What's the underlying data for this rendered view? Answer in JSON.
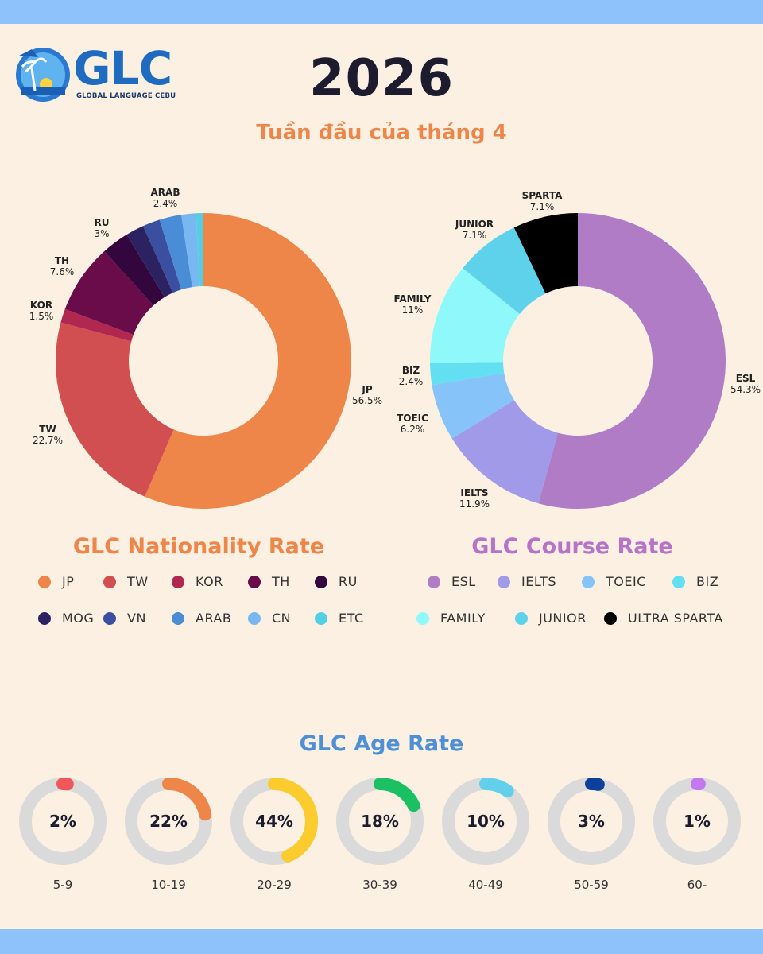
{
  "brand": {
    "name": "GLC",
    "tagline": "GLOBAL LANGUAGE CEBU"
  },
  "header": {
    "year": "2026",
    "subtitle": "Tuần đầu của tháng 4"
  },
  "colors": {
    "accent_orange": "#EE8649",
    "nationality_title": "#EE8649",
    "course_title": "#B774C6",
    "age_title": "#4E8FD6",
    "track": "#DADADA"
  },
  "chart_data": [
    {
      "type": "pie",
      "donut": true,
      "title": "GLC Nationality Rate",
      "slices": [
        {
          "label": "JP",
          "value": 56.5,
          "display": "56.5%",
          "color": "#EE8649"
        },
        {
          "label": "TW",
          "value": 22.7,
          "display": "22.7%",
          "color": "#D14F50"
        },
        {
          "label": "KOR",
          "value": 1.5,
          "display": "1.5%",
          "color": "#B0274F"
        },
        {
          "label": "TH",
          "value": 7.6,
          "display": "7.6%",
          "color": "#6A0C4A"
        },
        {
          "label": "RU",
          "value": 3,
          "display": "3%",
          "color": "#33063E"
        },
        {
          "label": "MOG",
          "value": 2.0,
          "display": "",
          "color": "#2C2262"
        },
        {
          "label": "VN",
          "value": 1.9,
          "display": "",
          "color": "#3A4FA0"
        },
        {
          "label": "ARAB",
          "value": 2.4,
          "display": "2.4%",
          "color": "#4A8CD6"
        },
        {
          "label": "CN",
          "value": 1.6,
          "display": "",
          "color": "#78B7F0"
        },
        {
          "label": "ETC",
          "value": 0.8,
          "display": "",
          "color": "#53CFE4"
        }
      ],
      "legend": [
        "JP",
        "TW",
        "KOR",
        "TH",
        "RU",
        "MOG",
        "VN",
        "ARAB",
        "CN",
        "ETC"
      ]
    },
    {
      "type": "pie",
      "donut": true,
      "title": "GLC Course Rate",
      "slices": [
        {
          "label": "ESL",
          "value": 54.3,
          "display": "54.3%",
          "color": "#B07CC6"
        },
        {
          "label": "IELTS",
          "value": 11.9,
          "display": "11.9%",
          "color": "#A19AE8"
        },
        {
          "label": "TOEIC",
          "value": 6.2,
          "display": "6.2%",
          "color": "#86C3F8"
        },
        {
          "label": "BIZ",
          "value": 2.4,
          "display": "2.4%",
          "color": "#62E0F2"
        },
        {
          "label": "FAMILY",
          "value": 11,
          "display": "11%",
          "color": "#8EF8FB"
        },
        {
          "label": "JUNIOR",
          "value": 7.1,
          "display": "7.1%",
          "color": "#5ED2EB"
        },
        {
          "label": "SPARTA",
          "value": 7.1,
          "display": "7.1%",
          "color": "#000000"
        }
      ],
      "legend": [
        {
          "label": "ESL",
          "color": "#B07CC6"
        },
        {
          "label": "IELTS",
          "color": "#A19AE8"
        },
        {
          "label": "TOEIC",
          "color": "#86C3F8"
        },
        {
          "label": "BIZ",
          "color": "#62E0F2"
        },
        {
          "label": "FAMILY",
          "color": "#8EF8FB"
        },
        {
          "label": "JUNIOR",
          "color": "#5ED2EB"
        },
        {
          "label": "ULTRA SPARTA",
          "color": "#000000"
        }
      ]
    },
    {
      "type": "gauge",
      "title": "GLC Age Rate",
      "items": [
        {
          "range": "5-9",
          "value": 2,
          "display": "2%",
          "color": "#F0575A"
        },
        {
          "range": "10-19",
          "value": 22,
          "display": "22%",
          "color": "#EE8649"
        },
        {
          "range": "20-29",
          "value": 44,
          "display": "44%",
          "color": "#FCCB2E"
        },
        {
          "range": "30-39",
          "value": 18,
          "display": "18%",
          "color": "#1BC063"
        },
        {
          "range": "40-49",
          "value": 10,
          "display": "10%",
          "color": "#62D0EA"
        },
        {
          "range": "50-59",
          "value": 3,
          "display": "3%",
          "color": "#0F3F9C"
        },
        {
          "range": "60-",
          "value": 1,
          "display": "1%",
          "color": "#C477EE"
        }
      ]
    }
  ]
}
